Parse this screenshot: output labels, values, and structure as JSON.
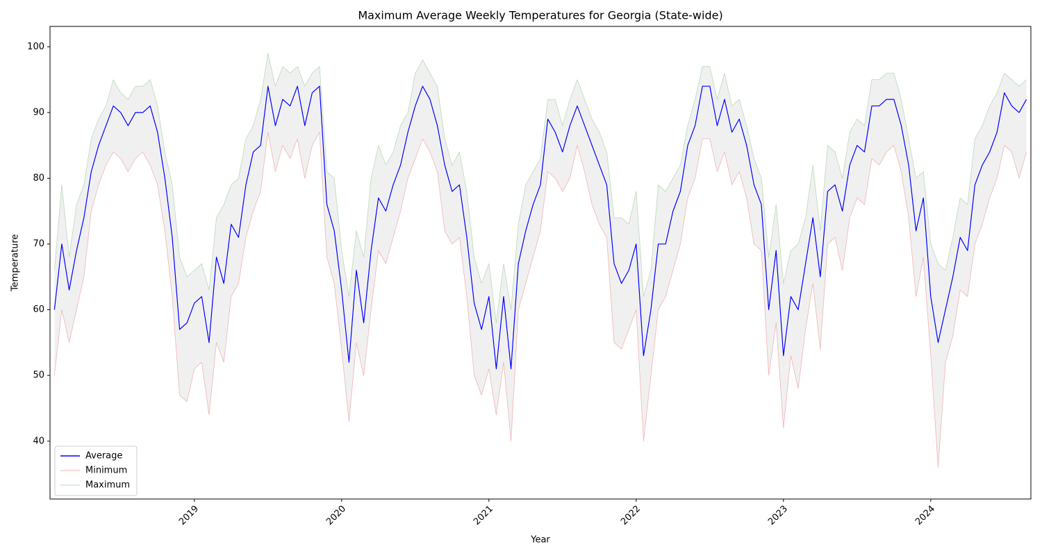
{
  "chart_data": {
    "type": "line",
    "title": "Maximum Average Weekly Temperatures for Georgia (State-wide)",
    "xlabel": "Year",
    "ylabel": "Temperature",
    "xlim": [
      2018.02,
      2024.68
    ],
    "ylim": [
      31.2,
      103.1
    ],
    "xticks": [
      2019,
      2020,
      2021,
      2022,
      2023,
      2024
    ],
    "yticks": [
      40,
      50,
      60,
      70,
      80,
      90,
      100
    ],
    "legend": "lower left",
    "band_fill": "#f0f0f0",
    "x": [
      2018.05,
      2018.1,
      2018.15,
      2018.2,
      2018.25,
      2018.3,
      2018.35,
      2018.4,
      2018.45,
      2018.5,
      2018.55,
      2018.6,
      2018.65,
      2018.7,
      2018.75,
      2018.8,
      2018.85,
      2018.9,
      2018.95,
      2019.0,
      2019.05,
      2019.1,
      2019.15,
      2019.2,
      2019.25,
      2019.3,
      2019.35,
      2019.4,
      2019.45,
      2019.5,
      2019.55,
      2019.6,
      2019.65,
      2019.7,
      2019.75,
      2019.8,
      2019.85,
      2019.9,
      2019.95,
      2020.0,
      2020.05,
      2020.1,
      2020.15,
      2020.2,
      2020.25,
      2020.3,
      2020.35,
      2020.4,
      2020.45,
      2020.5,
      2020.55,
      2020.6,
      2020.65,
      2020.7,
      2020.75,
      2020.8,
      2020.85,
      2020.9,
      2020.95,
      2021.0,
      2021.05,
      2021.1,
      2021.15,
      2021.2,
      2021.25,
      2021.3,
      2021.35,
      2021.4,
      2021.45,
      2021.5,
      2021.55,
      2021.6,
      2021.65,
      2021.7,
      2021.75,
      2021.8,
      2021.85,
      2021.9,
      2021.95,
      2022.0,
      2022.05,
      2022.1,
      2022.15,
      2022.2,
      2022.25,
      2022.3,
      2022.35,
      2022.4,
      2022.45,
      2022.5,
      2022.55,
      2022.6,
      2022.65,
      2022.7,
      2022.75,
      2022.8,
      2022.85,
      2022.9,
      2022.95,
      2023.0,
      2023.05,
      2023.1,
      2023.15,
      2023.2,
      2023.25,
      2023.3,
      2023.35,
      2023.4,
      2023.45,
      2023.5,
      2023.55,
      2023.6,
      2023.65,
      2023.7,
      2023.75,
      2023.8,
      2023.85,
      2023.9,
      2023.95,
      2024.0,
      2024.05,
      2024.1,
      2024.15,
      2024.2,
      2024.25,
      2024.3,
      2024.35,
      2024.4,
      2024.45,
      2024.5,
      2024.55,
      2024.6,
      2024.65
    ],
    "series": [
      {
        "name": "Average",
        "color": "#0000ff",
        "width": 1.2,
        "values": [
          60,
          70,
          63,
          69,
          74,
          81,
          85,
          88,
          91,
          90,
          88,
          90,
          90,
          91,
          87,
          80,
          71,
          57,
          58,
          61,
          62,
          55,
          68,
          64,
          73,
          71,
          79,
          84,
          85,
          94,
          88,
          92,
          91,
          94,
          88,
          93,
          94,
          76,
          72,
          63,
          52,
          66,
          58,
          69,
          77,
          75,
          79,
          82,
          87,
          91,
          94,
          92,
          88,
          82,
          78,
          79,
          71,
          61,
          57,
          62,
          51,
          62,
          51,
          67,
          72,
          76,
          79,
          89,
          87,
          84,
          88,
          91,
          88,
          85,
          82,
          79,
          67,
          64,
          66,
          70,
          53,
          60,
          70,
          70,
          75,
          78,
          85,
          88,
          94,
          94,
          88,
          92,
          87,
          89,
          85,
          79,
          76,
          60,
          69,
          53,
          62,
          60,
          67,
          74,
          65,
          78,
          79,
          75,
          82,
          85,
          84,
          91,
          91,
          92,
          92,
          88,
          82,
          72,
          77,
          62,
          55,
          60,
          65,
          71,
          69,
          79,
          82,
          84,
          87,
          93,
          91,
          90,
          92
        ]
      },
      {
        "name": "Minimum",
        "color": "#f2b3b3",
        "width": 0.8,
        "values": [
          50,
          60,
          55,
          60,
          65,
          75,
          79,
          82,
          84,
          83,
          81,
          83,
          84,
          82,
          79,
          72,
          62,
          47,
          46,
          51,
          52,
          44,
          55,
          52,
          62,
          64,
          71,
          75,
          78,
          87,
          81,
          85,
          83,
          86,
          80,
          85,
          87,
          68,
          64,
          54,
          43,
          55,
          50,
          60,
          69,
          67,
          71,
          75,
          80,
          83,
          86,
          84,
          81,
          72,
          70,
          71,
          62,
          50,
          47,
          51,
          44,
          52,
          40,
          60,
          64,
          68,
          72,
          81,
          80,
          78,
          80,
          85,
          81,
          76,
          73,
          71,
          55,
          54,
          57,
          60,
          40,
          50,
          60,
          62,
          66,
          70,
          77,
          80,
          86,
          86,
          81,
          84,
          79,
          81,
          77,
          70,
          69,
          50,
          58,
          42,
          53,
          48,
          57,
          64,
          54,
          70,
          71,
          66,
          74,
          77,
          76,
          83,
          82,
          84,
          85,
          81,
          74,
          62,
          68,
          53,
          36,
          52,
          56,
          63,
          62,
          70,
          73,
          77,
          80,
          85,
          84,
          80,
          84
        ]
      },
      {
        "name": "Maximum",
        "color": "#b8dbb8",
        "width": 0.8,
        "values": [
          66,
          79,
          68,
          76,
          79,
          86,
          89,
          91,
          95,
          93,
          92,
          94,
          94,
          95,
          91,
          84,
          79,
          68,
          65,
          66,
          67,
          63,
          74,
          76,
          79,
          80,
          86,
          88,
          92,
          99,
          94,
          97,
          96,
          97,
          94,
          96,
          97,
          81,
          80,
          69,
          62,
          72,
          68,
          80,
          85,
          82,
          84,
          88,
          90,
          96,
          98,
          96,
          94,
          86,
          82,
          84,
          78,
          68,
          64,
          67,
          58,
          67,
          60,
          73,
          79,
          81,
          83,
          92,
          92,
          88,
          92,
          95,
          92,
          89,
          87,
          84,
          74,
          74,
          73,
          78,
          62,
          66,
          79,
          78,
          80,
          82,
          88,
          92,
          97,
          97,
          92,
          96,
          91,
          92,
          88,
          83,
          80,
          68,
          76,
          64,
          69,
          70,
          74,
          82,
          72,
          85,
          84,
          80,
          87,
          89,
          88,
          95,
          95,
          96,
          96,
          92,
          86,
          80,
          81,
          70,
          67,
          66,
          71,
          77,
          76,
          86,
          88,
          91,
          93,
          96,
          95,
          94,
          95
        ]
      }
    ]
  }
}
